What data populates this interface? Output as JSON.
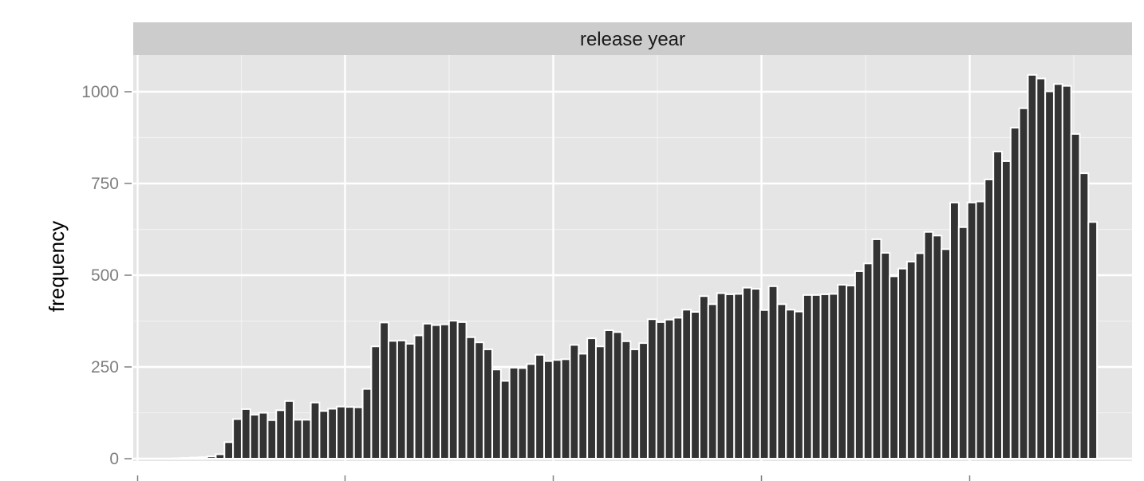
{
  "chart_data": {
    "type": "bar",
    "title": "",
    "facet_label": "release year",
    "xlabel": "",
    "ylabel": "frequency",
    "ylim": [
      0,
      1100
    ],
    "yticks": [
      0,
      250,
      500,
      750,
      1000
    ],
    "ytick_labels": [
      "0",
      "250",
      "500",
      "750",
      "1000"
    ],
    "x_tick_count": 5,
    "grid": true,
    "colors": {
      "panel": "#e5e5e5",
      "strip": "#cccccc",
      "bar_fill": "#333333",
      "bar_outline": "#ffffff",
      "grid_major": "#ffffff",
      "grid_minor": "#f2f2f2",
      "tick_label": "#7f7f7f"
    },
    "values": [
      0,
      0,
      0,
      0,
      1,
      2,
      3,
      4,
      6,
      12,
      45,
      108,
      135,
      120,
      125,
      105,
      132,
      157,
      106,
      106,
      153,
      130,
      136,
      142,
      141,
      140,
      190,
      306,
      371,
      321,
      322,
      313,
      336,
      368,
      364,
      366,
      376,
      372,
      331,
      317,
      298,
      243,
      212,
      248,
      247,
      258,
      283,
      266,
      269,
      271,
      310,
      286,
      328,
      306,
      350,
      345,
      320,
      298,
      315,
      380,
      372,
      379,
      384,
      406,
      400,
      443,
      421,
      451,
      448,
      449,
      466,
      463,
      405,
      470,
      421,
      406,
      401,
      446,
      446,
      448,
      449,
      474,
      472,
      511,
      532,
      598,
      561,
      497,
      518,
      537,
      560,
      618,
      608,
      571,
      698,
      631,
      698,
      701,
      761,
      837,
      811,
      902,
      955,
      1046,
      1036,
      1001,
      1021,
      1016,
      885,
      778,
      645
    ]
  }
}
